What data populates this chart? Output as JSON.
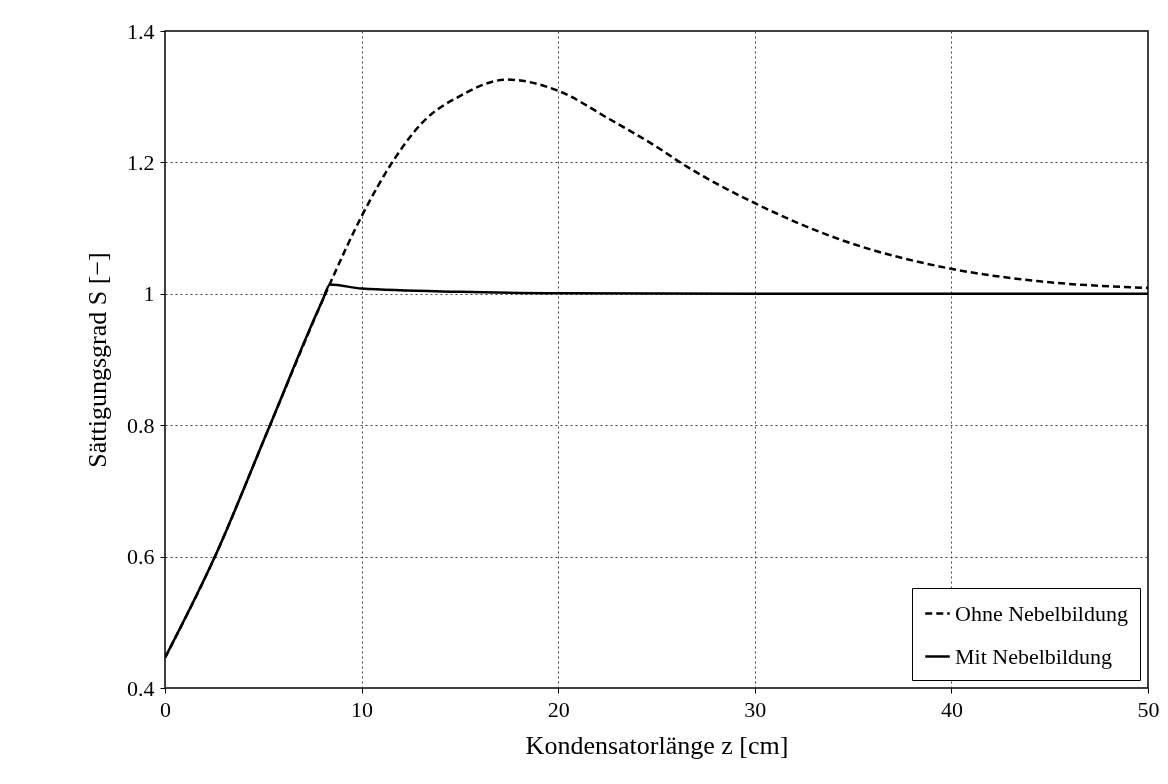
{
  "chart_data": {
    "type": "line",
    "xlabel": "Kondensatorlänge z [cm]",
    "ylabel": "Sättigungsgrad S [−]",
    "xlim": [
      0,
      50
    ],
    "xticks": [
      0,
      10,
      20,
      30,
      40,
      50
    ],
    "ylim": [
      0.4,
      1.4
    ],
    "yticks": [
      0.4,
      0.6,
      0.8,
      1,
      1.2,
      1.4
    ],
    "grid": true,
    "legend": "bottom right",
    "series": [
      {
        "name": "Ohne Nebelbildung",
        "color": "#000000",
        "line_style": "dashed",
        "x": [
          0,
          2.54,
          5.34,
          7.97,
          8.4,
          10,
          11.6,
          13.1,
          15,
          17.4,
          20,
          22.6,
          25.2,
          26.1,
          30,
          34.4,
          40,
          44.5,
          50
        ],
        "values": [
          0.446,
          0.6,
          0.8,
          0.987,
          1.016,
          1.118,
          1.202,
          1.261,
          1.301,
          1.326,
          1.309,
          1.266,
          1.22,
          1.202,
          1.138,
          1.082,
          1.038,
          1.019,
          1.009
        ]
      },
      {
        "name": "Mit Nebelbildung",
        "color": "#000000",
        "line_style": "solid",
        "x": [
          0,
          2.54,
          5.34,
          7.97,
          8.4,
          10,
          15,
          20,
          30,
          50
        ],
        "values": [
          0.446,
          0.6,
          0.8,
          0.987,
          1.014,
          1.008,
          1.003,
          1.001,
          1.0,
          1.0
        ]
      }
    ]
  }
}
